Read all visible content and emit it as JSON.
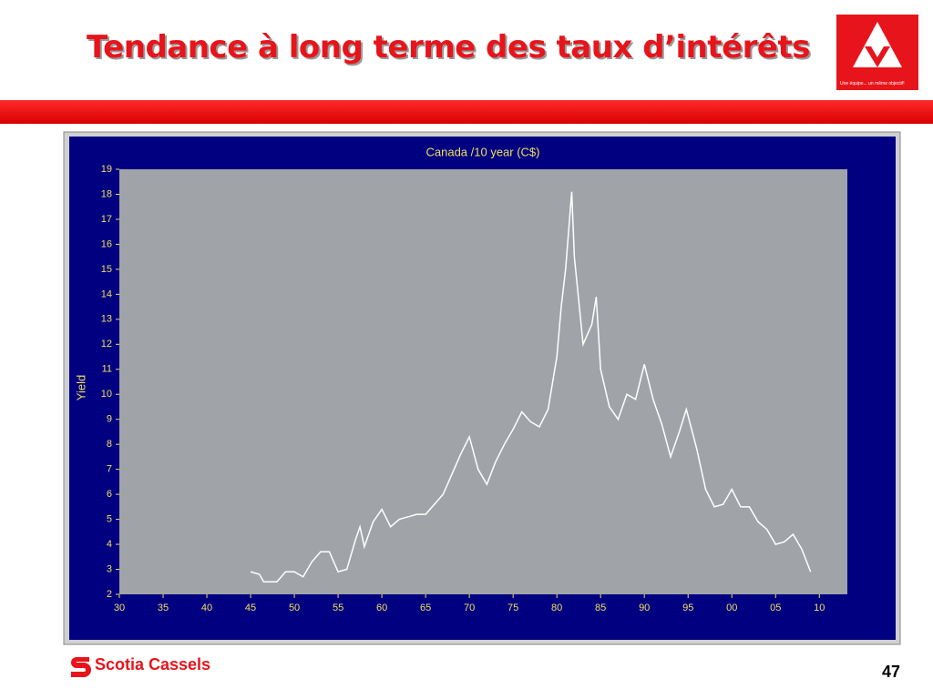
{
  "header": {
    "title": "Tendance à long terme des taux d’intérêts"
  },
  "logo": {
    "tagline": "Une équipe... un même objectif!"
  },
  "footer": {
    "brand": "Scotia Cassels",
    "page": "47"
  },
  "chart_data": {
    "type": "line",
    "title": "Canada /10 year (C$)",
    "ylabel": "Yield",
    "x": [
      1945,
      1946,
      1946.5,
      1948,
      1949,
      1950,
      1951,
      1952,
      1953,
      1954,
      1955,
      1956,
      1957,
      1957.5,
      1958,
      1959,
      1960,
      1961,
      1962,
      1963,
      1964,
      1965,
      1966,
      1967,
      1968,
      1969,
      1970,
      1971,
      1972,
      1973,
      1974,
      1975,
      1976,
      1977,
      1978,
      1979,
      1980,
      1980.5,
      1981,
      1981.7,
      1982,
      1983,
      1984,
      1984.5,
      1985,
      1986,
      1987,
      1988,
      1989,
      1990,
      1991,
      1992,
      1993,
      1994,
      1994.8,
      1996,
      1997,
      1998,
      1999,
      2000,
      2001,
      2002,
      2003,
      2004,
      2005,
      2006,
      2007,
      2008,
      2009
    ],
    "series": [
      {
        "name": "Canada 10 year",
        "color": "#ffffff",
        "values": [
          2.9,
          2.8,
          2.5,
          2.5,
          2.9,
          2.9,
          2.7,
          3.3,
          3.7,
          3.7,
          2.9,
          3.0,
          4.2,
          4.7,
          3.9,
          4.9,
          5.4,
          4.7,
          5.0,
          5.1,
          5.2,
          5.2,
          5.6,
          6.0,
          6.8,
          7.6,
          8.3,
          7.0,
          6.4,
          7.3,
          8.0,
          8.6,
          9.3,
          8.9,
          8.7,
          9.4,
          11.5,
          13.5,
          15.0,
          18.1,
          15.5,
          12.0,
          12.8,
          13.9,
          11.0,
          9.5,
          9.0,
          10.0,
          9.8,
          11.2,
          9.8,
          8.8,
          7.5,
          8.5,
          9.4,
          7.8,
          6.2,
          5.5,
          5.6,
          6.2,
          5.5,
          5.5,
          4.9,
          4.6,
          4.0,
          4.1,
          4.4,
          3.8,
          2.9
        ]
      }
    ],
    "xlim": [
      1930,
      2013.2
    ],
    "ylim": [
      2,
      19
    ],
    "xticks": [
      {
        "value": 1930,
        "label": "30"
      },
      {
        "value": 1935,
        "label": "35"
      },
      {
        "value": 1940,
        "label": "40"
      },
      {
        "value": 1945,
        "label": "45"
      },
      {
        "value": 1950,
        "label": "50"
      },
      {
        "value": 1955,
        "label": "55"
      },
      {
        "value": 1960,
        "label": "60"
      },
      {
        "value": 1965,
        "label": "65"
      },
      {
        "value": 1970,
        "label": "70"
      },
      {
        "value": 1975,
        "label": "75"
      },
      {
        "value": 1980,
        "label": "80"
      },
      {
        "value": 1985,
        "label": "85"
      },
      {
        "value": 1990,
        "label": "90"
      },
      {
        "value": 1995,
        "label": "95"
      },
      {
        "value": 2000,
        "label": "00"
      },
      {
        "value": 2005,
        "label": "05"
      },
      {
        "value": 2010,
        "label": "10"
      }
    ],
    "yticks": [
      2,
      3,
      4,
      5,
      6,
      7,
      8,
      9,
      10,
      11,
      12,
      13,
      14,
      15,
      16,
      17,
      18,
      19
    ]
  }
}
